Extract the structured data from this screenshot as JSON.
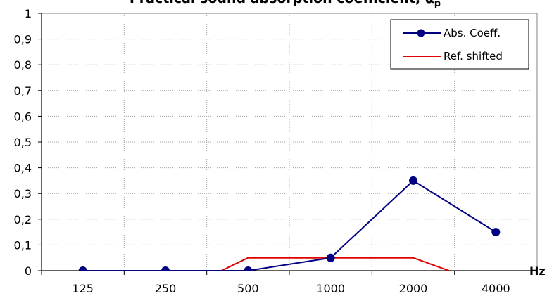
{
  "chart_data": {
    "type": "line",
    "title": "Practical sound absorption coefficient, ",
    "title_symbol": "α",
    "title_subscript": "p",
    "xlabel": "Hz",
    "ylabel": "",
    "categories": [
      "125",
      "250",
      "500",
      "1000",
      "2000",
      "4000"
    ],
    "yticks": [
      "0",
      "0,1",
      "0,2",
      "0,3",
      "0,4",
      "0,5",
      "0,6",
      "0,7",
      "0,8",
      "0,9",
      "1"
    ],
    "ylim": [
      0,
      1
    ],
    "grid": true,
    "legend_position": "top-right",
    "series": [
      {
        "name": "Abs. Coeff.",
        "color": "#000080",
        "marker": "circle",
        "x": [
          "125",
          "250",
          "500",
          "1000",
          "2000",
          "4000"
        ],
        "values": [
          0,
          0,
          0,
          0.05,
          0.35,
          0.15
        ]
      },
      {
        "name": "Ref. shifted",
        "color": "#e00000",
        "marker": "none",
        "x": [
          "350",
          "400",
          "500",
          "1000",
          "2000",
          "2700",
          "3000"
        ],
        "values": [
          -0.1,
          0,
          0.05,
          0.05,
          0.05,
          0,
          -0.1
        ]
      }
    ]
  }
}
